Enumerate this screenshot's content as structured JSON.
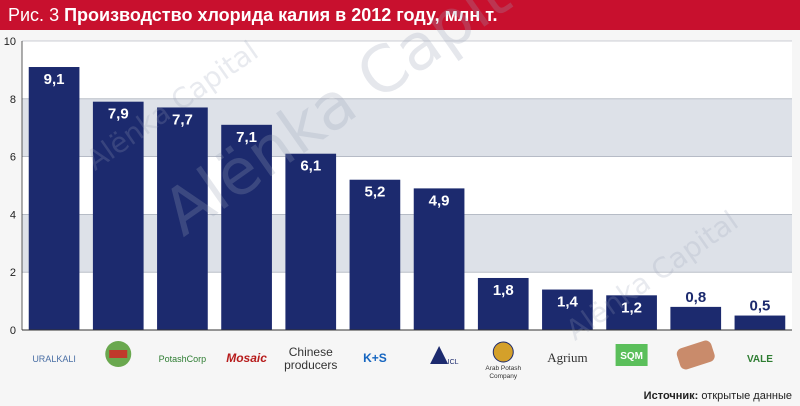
{
  "title": {
    "prefix": "Рис. 3",
    "main": "Производство хлорида калия в 2012 году, млн т."
  },
  "watermark": "Alёnka Capital",
  "source": {
    "label": "Источник:",
    "text": "открытые данные"
  },
  "colors": {
    "title_bg": "#c8102e",
    "bar": "#1c2a6e",
    "band_light": "#ffffff",
    "band_shaded": "#dde1e8"
  },
  "chart_data": {
    "type": "bar",
    "categories": [
      "Uralkali",
      "Belaruskali",
      "PotashCorp",
      "Mosaic",
      "Chinese producers",
      "K+S",
      "ICL",
      "Arab Potash Company",
      "Agrium",
      "SQM",
      "Apatit",
      "Vale"
    ],
    "category_labels": [
      "URALKALI",
      "",
      "PotashCorp",
      "Mosaic",
      "Chinese producers",
      "K+S",
      "ICL",
      "Arab Potash Company",
      "Agrium",
      "SQM",
      "",
      "VALE"
    ],
    "values": [
      9.1,
      7.9,
      7.7,
      7.1,
      6.1,
      5.2,
      4.9,
      1.8,
      1.4,
      1.2,
      0.8,
      0.5
    ],
    "value_labels": [
      "9,1",
      "7,9",
      "7,7",
      "7,1",
      "6,1",
      "5,2",
      "4,9",
      "1,8",
      "1,4",
      "1,2",
      "0,8",
      "0,5"
    ],
    "ylim": [
      0,
      10
    ],
    "yticks": [
      0,
      2,
      4,
      6,
      8,
      10
    ],
    "ytick_labels": [
      "0",
      "2",
      "4",
      "6",
      "8",
      "10"
    ],
    "xlabel": "",
    "ylabel": "",
    "grid": true
  }
}
